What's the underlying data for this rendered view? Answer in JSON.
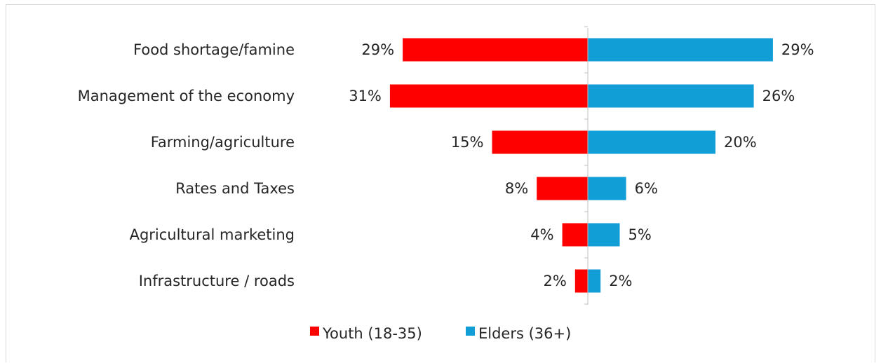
{
  "chart_data": {
    "type": "bar",
    "orientation": "horizontal-diverging",
    "title": "",
    "xlabel": "",
    "ylabel": "",
    "categories": [
      "Food shortage/famine",
      "Management of the economy",
      "Farming/agriculture",
      "Rates and Taxes",
      "Agricultural marketing",
      "Infrastructure / roads"
    ],
    "series": [
      {
        "name": "Youth (18-35)",
        "values": [
          29,
          31,
          15,
          8,
          4,
          2
        ],
        "labels": [
          "29%",
          "31%",
          "15%",
          "8%",
          "4%",
          "2%"
        ],
        "color": "#ff0000",
        "direction": "left"
      },
      {
        "name": "Elders (36+)",
        "values": [
          29,
          26,
          20,
          6,
          5,
          2
        ],
        "labels": [
          "29%",
          "26%",
          "20%",
          "6%",
          "5%",
          "2%"
        ],
        "color": "#119ed6",
        "direction": "right"
      }
    ],
    "value_unit": "%",
    "xlim": [
      -31,
      31
    ],
    "grid": false,
    "legend_position": "bottom"
  }
}
